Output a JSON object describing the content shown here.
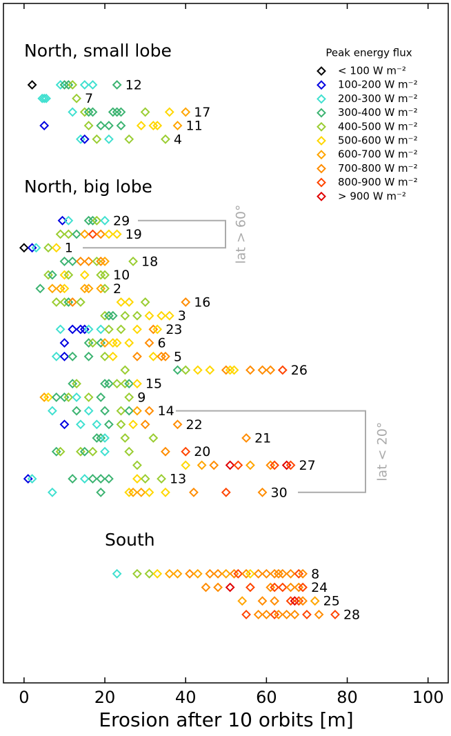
{
  "chart_data": {
    "type": "strip",
    "xlabel": "Erosion after 10 orbits [m]",
    "xlim": [
      -5.1,
      105
    ],
    "xticks": [
      0,
      20,
      40,
      60,
      80,
      100
    ],
    "legend_title": "Peak energy flux",
    "legend": "upper right",
    "series": [
      {
        "name": "< 100 W m⁻²",
        "color": "#000000"
      },
      {
        "name": "100-200 W m⁻²",
        "color": "#0000e0"
      },
      {
        "name": "200-300 W m⁻²",
        "color": "#40e0d0"
      },
      {
        "name": "300-400 W m⁻²",
        "color": "#3cb371"
      },
      {
        "name": "400-500 W m⁻²",
        "color": "#9acd32"
      },
      {
        "name": "500-600 W m⁻²",
        "color": "#ffd700"
      },
      {
        "name": "600-700 W m⁻²",
        "color": "#ffa500"
      },
      {
        "name": "700-800 W m⁻²",
        "color": "#ff8c00"
      },
      {
        "name": "800-900 W m⁻²",
        "color": "#ff4500"
      },
      {
        "name": "> 900 W m⁻²",
        "color": "#e00000"
      }
    ],
    "annotations": [
      "lat > 60°",
      "lat < 20°"
    ],
    "groups": [
      {
        "title": "North, small lobe",
        "rows": [
          {
            "label": "12",
            "values": [
              2,
              9,
              10,
              11,
              12,
              15,
              17,
              23
            ],
            "colors": [
              "#000000",
              "#40e0d0",
              "#3cb371",
              "#3cb371",
              "#9acd32",
              "#40e0d0",
              "#40e0d0",
              "#3cb371"
            ]
          },
          {
            "label": "7",
            "values": [
              4.5,
              5,
              5.5,
              13
            ],
            "colors": [
              "#40e0d0",
              "#40e0d0",
              "#40e0d0",
              "#9acd32"
            ]
          },
          {
            "label": "17",
            "values": [
              12,
              15,
              16,
              17,
              22,
              23,
              24,
              30,
              36,
              40
            ],
            "colors": [
              "#40e0d0",
              "#9acd32",
              "#3cb371",
              "#3cb371",
              "#3cb371",
              "#3cb371",
              "#3cb371",
              "#9acd32",
              "#ffd700",
              "#ffa500"
            ]
          },
          {
            "label": "11",
            "values": [
              5,
              16,
              19,
              21,
              24,
              29,
              32,
              33,
              38
            ],
            "colors": [
              "#0000e0",
              "#9acd32",
              "#3cb371",
              "#3cb371",
              "#3cb371",
              "#ffd700",
              "#ffd700",
              "#ffd700",
              "#ffa500"
            ]
          },
          {
            "label": "4",
            "values": [
              14,
              15,
              18,
              21,
              26,
              35
            ],
            "colors": [
              "#40e0d0",
              "#0000e0",
              "#9acd32",
              "#40e0d0",
              "#9acd32",
              "#9acd32"
            ]
          }
        ]
      },
      {
        "title": "North, big lobe",
        "rows": [
          {
            "label": "29",
            "values": [
              9.5,
              11,
              16,
              17,
              18,
              20
            ],
            "colors": [
              "#0000e0",
              "#40e0d0",
              "#3cb371",
              "#3cb371",
              "#9acd32",
              "#40e0d0"
            ]
          },
          {
            "label": "19",
            "values": [
              9,
              11,
              13,
              15,
              17,
              19,
              21,
              23
            ],
            "colors": [
              "#9acd32",
              "#9acd32",
              "#3cb371",
              "#ffa500",
              "#ff4500",
              "#ff8c00",
              "#ffd700",
              "#ffd700"
            ]
          },
          {
            "label": "1",
            "values": [
              0,
              2,
              3,
              6,
              8
            ],
            "colors": [
              "#000000",
              "#0000e0",
              "#40e0d0",
              "#9acd32",
              "#ffd700"
            ]
          },
          {
            "label": "18",
            "values": [
              10,
              12,
              14,
              16,
              18,
              19,
              20,
              27
            ],
            "colors": [
              "#3cb371",
              "#3cb371",
              "#ff8c00",
              "#ff8c00",
              "#9acd32",
              "#ff8c00",
              "#ffa500",
              "#9acd32"
            ]
          },
          {
            "label": "10",
            "values": [
              6,
              7,
              10,
              11,
              15,
              19,
              20
            ],
            "colors": [
              "#9acd32",
              "#3cb371",
              "#ffd700",
              "#9acd32",
              "#ffd700",
              "#9acd32",
              "#9acd32"
            ]
          },
          {
            "label": "2",
            "values": [
              4,
              7,
              9,
              10,
              15,
              16,
              19,
              20
            ],
            "colors": [
              "#3cb371",
              "#ffa500",
              "#ffa500",
              "#ffd700",
              "#ffa500",
              "#ffa500",
              "#ffa500",
              "#9acd32"
            ]
          },
          {
            "label": "16",
            "values": [
              8,
              10,
              11,
              12,
              14,
              24,
              26,
              30,
              40
            ],
            "colors": [
              "#9acd32",
              "#9acd32",
              "#3cb371",
              "#ff8c00",
              "#9acd32",
              "#ffd700",
              "#ffd700",
              "#9acd32",
              "#ff8c00"
            ]
          },
          {
            "label": "3",
            "values": [
              20,
              21,
              22,
              25,
              28,
              31,
              34,
              36
            ],
            "colors": [
              "#9acd32",
              "#3cb371",
              "#3cb371",
              "#9acd32",
              "#9acd32",
              "#ffd700",
              "#ffd700",
              "#ffd700"
            ]
          },
          {
            "label": "23",
            "values": [
              9,
              12,
              14,
              15,
              16,
              19,
              21,
              24,
              28,
              32,
              33
            ],
            "colors": [
              "#40e0d0",
              "#0000e0",
              "#0000e0",
              "#0000e0",
              "#40e0d0",
              "#40e0d0",
              "#9acd32",
              "#9acd32",
              "#ffd700",
              "#ff8c00",
              "#ffd700"
            ]
          },
          {
            "label": "6",
            "values": [
              10,
              16,
              17,
              19,
              20,
              22,
              23,
              26,
              31
            ],
            "colors": [
              "#0000e0",
              "#3cb371",
              "#9acd32",
              "#3cb371",
              "#ffa500",
              "#ffd700",
              "#ffd700",
              "#ffd700",
              "#ff8c00"
            ]
          },
          {
            "label": "5",
            "values": [
              8,
              10,
              12,
              16,
              20,
              22,
              28,
              32,
              34,
              35
            ],
            "colors": [
              "#40e0d0",
              "#0000e0",
              "#3cb371",
              "#3cb371",
              "#9acd32",
              "#ffd700",
              "#ff8c00",
              "#ffd700",
              "#ff8c00",
              "#ff8c00"
            ]
          },
          {
            "label": "26",
            "values": [
              25,
              38,
              40,
              43,
              46,
              50,
              51,
              52,
              56,
              59,
              61,
              64
            ],
            "colors": [
              "#9acd32",
              "#3cb371",
              "#9acd32",
              "#ffd700",
              "#ffd700",
              "#ff8c00",
              "#ffd700",
              "#ffd700",
              "#ff8c00",
              "#ff8c00",
              "#ff8c00",
              "#ff4500"
            ]
          },
          {
            "label": "15",
            "values": [
              12,
              13,
              20,
              21,
              23,
              25,
              26,
              28
            ],
            "colors": [
              "#3cb371",
              "#9acd32",
              "#3cb371",
              "#3cb371",
              "#9acd32",
              "#9acd32",
              "#3cb371",
              "#ffd700"
            ]
          },
          {
            "label": "9",
            "values": [
              5,
              6,
              8,
              10,
              11,
              13,
              16,
              19,
              26
            ],
            "colors": [
              "#ffa500",
              "#ffd700",
              "#3cb371",
              "#3cb371",
              "#9acd32",
              "#40e0d0",
              "#9acd32",
              "#3cb371",
              "#9acd32"
            ]
          },
          {
            "label": "14",
            "values": [
              7,
              13,
              16,
              20,
              24,
              26,
              28,
              31
            ],
            "colors": [
              "#40e0d0",
              "#3cb371",
              "#40e0d0",
              "#3cb371",
              "#9acd32",
              "#3cb371",
              "#ffa500",
              "#ff8c00"
            ]
          },
          {
            "label": "22",
            "values": [
              10,
              14,
              18,
              21,
              24,
              27,
              30,
              38
            ],
            "colors": [
              "#0000e0",
              "#40e0d0",
              "#40e0d0",
              "#3cb371",
              "#9acd32",
              "#ffd700",
              "#ff8c00",
              "#ff8c00"
            ]
          },
          {
            "label": "21",
            "values": [
              18,
              19,
              20,
              25,
              32,
              55
            ],
            "colors": [
              "#3cb371",
              "#3cb371",
              "#40e0d0",
              "#9acd32",
              "#9acd32",
              "#ff8c00"
            ]
          },
          {
            "label": "20",
            "values": [
              8,
              9,
              14,
              15,
              17,
              20,
              26,
              35,
              40
            ],
            "colors": [
              "#3cb371",
              "#9acd32",
              "#9acd32",
              "#3cb371",
              "#9acd32",
              "#40e0d0",
              "#9acd32",
              "#ff8c00",
              "#ff4500"
            ]
          },
          {
            "label": "27",
            "values": [
              28,
              40,
              44,
              47,
              51,
              53,
              56,
              61,
              62,
              65,
              66
            ],
            "colors": [
              "#9acd32",
              "#ffd700",
              "#ffa500",
              "#ff8c00",
              "#e00000",
              "#ff4500",
              "#ffa500",
              "#ff8c00",
              "#ff4500",
              "#e00000",
              "#ff4500"
            ]
          },
          {
            "label": "13",
            "values": [
              1,
              2,
              12,
              15,
              17,
              19,
              21,
              28,
              30,
              34
            ],
            "colors": [
              "#0000e0",
              "#40e0d0",
              "#3cb371",
              "#40e0d0",
              "#3cb371",
              "#3cb371",
              "#3cb371",
              "#ffd700",
              "#9acd32",
              "#9acd32"
            ]
          },
          {
            "label": "30",
            "values": [
              7,
              19,
              26,
              27,
              29,
              31,
              35,
              42,
              50,
              59
            ],
            "colors": [
              "#40e0d0",
              "#3cb371",
              "#ffd700",
              "#ffa500",
              "#ffa500",
              "#ffd700",
              "#ffd700",
              "#ff8c00",
              "#ff4500",
              "#ff8c00"
            ]
          }
        ]
      },
      {
        "title": "South",
        "rows": [
          {
            "label": "8",
            "values": [
              23,
              28,
              31,
              33,
              36,
              38,
              41,
              43,
              46,
              48,
              50,
              52,
              53,
              55,
              56,
              58,
              60,
              62,
              63,
              64,
              66,
              68,
              69
            ],
            "colors": [
              "#40e0d0",
              "#9acd32",
              "#9acd32",
              "#ffd700",
              "#ffa500",
              "#ffa500",
              "#ff8c00",
              "#ffa500",
              "#ff8c00",
              "#ff8c00",
              "#ffa500",
              "#ff8c00",
              "#ff4500",
              "#ff8c00",
              "#ffd700",
              "#ff8c00",
              "#ff8c00",
              "#ff8c00",
              "#ff8c00",
              "#ff8c00",
              "#ff8c00",
              "#ff4500",
              "#ff8c00"
            ]
          },
          {
            "label": "24",
            "values": [
              45,
              48,
              51,
              56,
              61,
              62,
              64,
              66,
              68,
              69
            ],
            "colors": [
              "#ff8c00",
              "#ff8c00",
              "#e00000",
              "#ff4500",
              "#ff8c00",
              "#ff4500",
              "#ff4500",
              "#ff8c00",
              "#ff8c00",
              "#ff4500"
            ]
          },
          {
            "label": "25",
            "values": [
              54,
              59,
              62,
              66,
              67,
              68,
              69,
              72
            ],
            "colors": [
              "#ffa500",
              "#ff8c00",
              "#ff8c00",
              "#ff4500",
              "#e00000",
              "#ff4500",
              "#ff8c00",
              "#ffa500"
            ]
          },
          {
            "label": "28",
            "values": [
              55,
              58,
              60,
              62,
              63,
              65,
              67,
              70,
              73,
              77
            ],
            "colors": [
              "#ff4500",
              "#ff8c00",
              "#ff8c00",
              "#ff4500",
              "#ff8c00",
              "#ff8c00",
              "#ff8c00",
              "#ff4500",
              "#ff8c00",
              "#ff4500"
            ]
          }
        ]
      }
    ]
  }
}
